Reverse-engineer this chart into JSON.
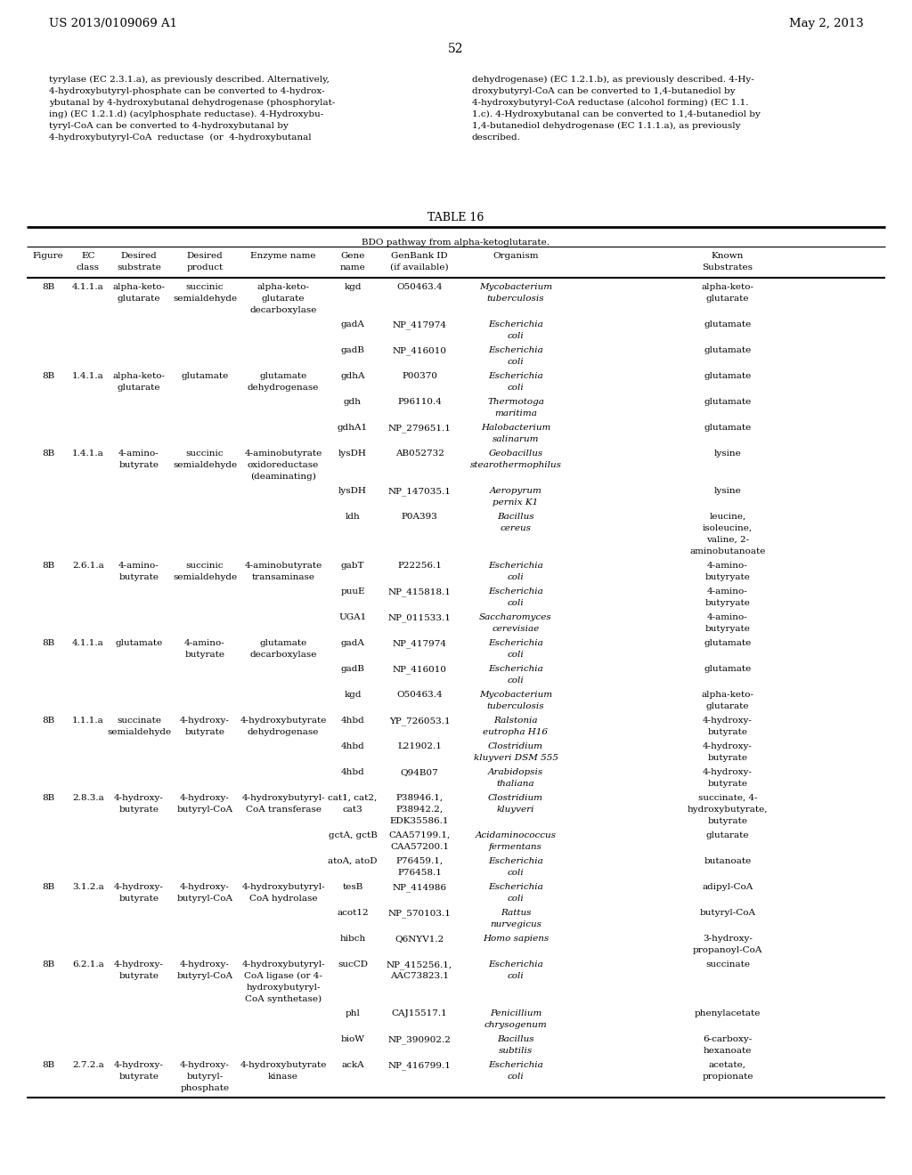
{
  "header_left": "US 2013/0109069 A1",
  "header_right": "May 2, 2013",
  "page_number": "52",
  "intro_left_lines": [
    "tyrylase (EC 2.3.1.a), as previously described. Alternatively,",
    "4-hydroxybutyryl-phosphate can be converted to 4-hydrox-",
    "ybutanal by 4-hydroxybutanal dehydrogenase (phosphorylat-",
    "ing) (EC 1.2.1.d) (acylphosphate reductase). 4-Hydroxybu-",
    "tyryl-CoA can be converted to 4-hydroxybutanal by",
    "4-hydroxybutyryl-CoA  reductase  (or  4-hydroxybutanal"
  ],
  "intro_right_lines": [
    "dehydrogenase) (EC 1.2.1.b), as previously described. 4-Hy-",
    "droxybutyryl-CoA can be converted to 1,4-butanediol by",
    "4-hydroxybutyryl-CoA reductase (alcohol forming) (EC 1.1.",
    "1.c). 4-Hydroxybutanal can be converted to 1,4-butanediol by",
    "1,4-butanediol dehydrogenase (EC 1.1.1.a), as previously",
    "described."
  ],
  "table_title": "TABLE 16",
  "table_subtitle": "BDO pathway from alpha-ketoglutarate.",
  "rows": [
    [
      "8B",
      "4.1.1.a",
      "alpha-keto-\nglutarate",
      "succinic\nsemialdehyde",
      "alpha-keto-\nglutarate\ndecarboxylase",
      "kgd",
      "O50463.4",
      "Mycobacterium\ntuberculosis",
      "alpha-keto-\nglutarate"
    ],
    [
      "",
      "",
      "",
      "",
      "",
      "gadA",
      "NP_417974",
      "Escherichia\ncoli",
      "glutamate"
    ],
    [
      "",
      "",
      "",
      "",
      "",
      "gadB",
      "NP_416010",
      "Escherichia\ncoli",
      "glutamate"
    ],
    [
      "8B",
      "1.4.1.a",
      "alpha-keto-\nglutarate",
      "glutamate",
      "glutamate\ndehydrogenase",
      "gdhA",
      "P00370",
      "Escherichia\ncoli",
      "glutamate"
    ],
    [
      "",
      "",
      "",
      "",
      "",
      "gdh",
      "P96110.4",
      "Thermotoga\nmaritima",
      "glutamate"
    ],
    [
      "",
      "",
      "",
      "",
      "",
      "gdhA1",
      "NP_279651.1",
      "Halobacterium\nsalinarum",
      "glutamate"
    ],
    [
      "8B",
      "1.4.1.a",
      "4-amino-\nbutyrate",
      "succinic\nsemialdehyde",
      "4-aminobutyrate\noxidoreductase\n(deaminating)",
      "lysDH",
      "AB052732",
      "Geobacillus\nstearothermophilus",
      "lysine"
    ],
    [
      "",
      "",
      "",
      "",
      "",
      "lysDH",
      "NP_147035.1",
      "Aeropyrum\npernix K1",
      "lysine"
    ],
    [
      "",
      "",
      "",
      "",
      "",
      "ldh",
      "P0A393",
      "Bacillus\ncereus",
      "leucine,\nisoleucine,\nvaline, 2-\naminobutanoate"
    ],
    [
      "8B",
      "2.6.1.a",
      "4-amino-\nbutyrate",
      "succinic\nsemialdehyde",
      "4-aminobutyrate\ntransaminase",
      "gabT",
      "P22256.1",
      "Escherichia\ncoli",
      "4-amino-\nbutyryate"
    ],
    [
      "",
      "",
      "",
      "",
      "",
      "puuE",
      "NP_415818.1",
      "Escherichia\ncoli",
      "4-amino-\nbutyryate"
    ],
    [
      "",
      "",
      "",
      "",
      "",
      "UGA1",
      "NP_011533.1",
      "Saccharomyces\ncerevisiae",
      "4-amino-\nbutyryate"
    ],
    [
      "8B",
      "4.1.1.a",
      "glutamate",
      "4-amino-\nbutyrate",
      "glutamate\ndecarboxylase",
      "gadA",
      "NP_417974",
      "Escherichia\ncoli",
      "glutamate"
    ],
    [
      "",
      "",
      "",
      "",
      "",
      "gadB",
      "NP_416010",
      "Escherichia\ncoli",
      "glutamate"
    ],
    [
      "",
      "",
      "",
      "",
      "",
      "kgd",
      "O50463.4",
      "Mycobacterium\ntuberculosis",
      "alpha-keto-\nglutarate"
    ],
    [
      "8B",
      "1.1.1.a",
      "succinate\nsemialdehyde",
      "4-hydroxy-\nbutyrate",
      "4-hydroxybutyrate\ndehydrogenase",
      "4hbd",
      "YP_726053.1",
      "Ralstonia\neutropha H16",
      "4-hydroxy-\nbutyrate"
    ],
    [
      "",
      "",
      "",
      "",
      "",
      "4hbd",
      "L21902.1",
      "Clostridium\nkluyveri DSM 555",
      "4-hydroxy-\nbutyrate"
    ],
    [
      "",
      "",
      "",
      "",
      "",
      "4hbd",
      "Q94B07",
      "Arabidopsis\nthaliana",
      "4-hydroxy-\nbutyrate"
    ],
    [
      "8B",
      "2.8.3.a",
      "4-hydroxy-\nbutyrate",
      "4-hydroxy-\nbutyryl-CoA",
      "4-hydroxybutyryl-\nCoA transferase",
      "cat1, cat2,\ncat3",
      "P38946.1,\nP38942.2,\nEDK35586.1",
      "Clostridium\nkluyveri",
      "succinate, 4-\nhydroxybutyrate,\nbutyrate"
    ],
    [
      "",
      "",
      "",
      "",
      "",
      "gctA, gctB",
      "CAA57199.1,\nCAA57200.1",
      "Acidaminococcus\nfermentans",
      "glutarate"
    ],
    [
      "",
      "",
      "",
      "",
      "",
      "atoA, atoD",
      "P76459.1,\nP76458.1",
      "Escherichia\ncoli",
      "butanoate"
    ],
    [
      "8B",
      "3.1.2.a",
      "4-hydroxy-\nbutyrate",
      "4-hydroxy-\nbutyryl-CoA",
      "4-hydroxybutyryl-\nCoA hydrolase",
      "tesB",
      "NP_414986",
      "Escherichia\ncoli",
      "adipyl-CoA"
    ],
    [
      "",
      "",
      "",
      "",
      "",
      "acot12",
      "NP_570103.1",
      "Rattus\nnurvegicus",
      "butyryl-CoA"
    ],
    [
      "",
      "",
      "",
      "",
      "",
      "hibch",
      "Q6NYV1.2",
      "Homo sapiens",
      "3-hydroxy-\npropanoyl-CoA"
    ],
    [
      "8B",
      "6.2.1.a",
      "4-hydroxy-\nbutyrate",
      "4-hydroxy-\nbutyryl-CoA",
      "4-hydroxybutyryl-\nCoA ligase (or 4-\nhydroxybutyryl-\nCoA synthetase)",
      "sucCD",
      "NP_415256.1,\nAAC73823.1",
      "Escherichia\ncoli",
      "succinate"
    ],
    [
      "",
      "",
      "",
      "",
      "",
      "phl",
      "CAJ15517.1",
      "Penicillium\nchrysogenum",
      "phenylacetate"
    ],
    [
      "",
      "",
      "",
      "",
      "",
      "bioW",
      "NP_390902.2",
      "Bacillus\nsubtilis",
      "6-carboxy-\nhexanoate"
    ],
    [
      "8B",
      "2.7.2.a",
      "4-hydroxy-\nbutyrate",
      "4-hydroxy-\nbutyryl-\nphosphate",
      "4-hydroxybutyrate\nkinase",
      "ackA",
      "NP_416799.1",
      "Escherichia\ncoli",
      "acetate,\npropionate"
    ]
  ]
}
